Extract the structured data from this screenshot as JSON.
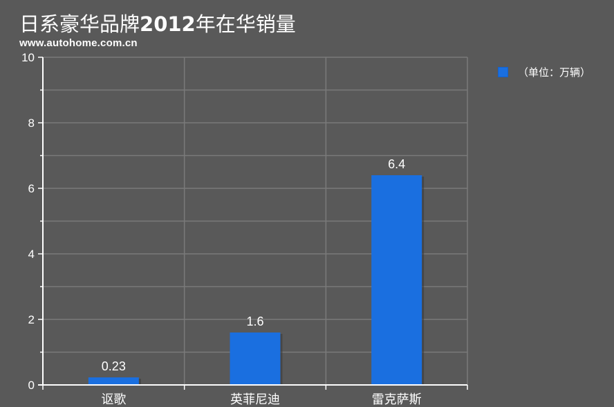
{
  "page": {
    "title_prefix": "日系豪华品牌",
    "title_year": "2012",
    "title_suffix": "年在华销量",
    "source": "www.autohome.com.cn"
  },
  "colors": {
    "background": "#595959",
    "bar": "#1a6fe0",
    "grid": "#7a7a7a",
    "axis": "#ffffff",
    "text": "#ffffff"
  },
  "chart_data": {
    "type": "bar",
    "title": "日系豪华品牌2012年在华销量",
    "categories": [
      "讴歌",
      "英菲尼迪",
      "雷克萨斯"
    ],
    "series": [
      {
        "name": "（单位：万辆）",
        "values": [
          0.23,
          1.6,
          6.4
        ]
      }
    ],
    "value_labels": [
      "0.23",
      "1.6",
      "6.4"
    ],
    "ylim": [
      0,
      10
    ],
    "yticks": [
      0,
      2,
      4,
      6,
      8,
      10
    ],
    "xlabel": "",
    "ylabel": "",
    "grid": true,
    "legend_position": "top-right"
  }
}
